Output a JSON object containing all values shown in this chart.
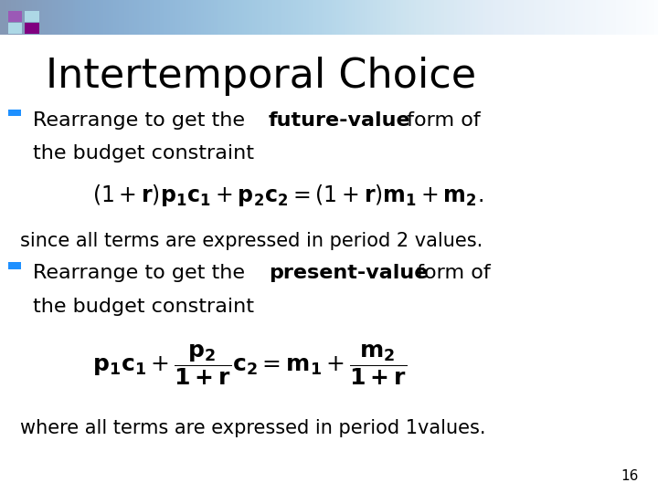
{
  "title": "Intertemporal Choice",
  "title_fontsize": 32,
  "title_color": "#000000",
  "bullet_color": "#1E90FF",
  "bullet1_bold": "future-value",
  "bullet2_bold": "present-value",
  "since_text": "since all terms are expressed in period 2 values.",
  "where_text": "where all terms are expressed in period 1values.",
  "page_number": "16",
  "bg_color": "#FFFFFF",
  "sq_colors": [
    "#9B59B6",
    "#ADD8E6",
    "#ADD8E6",
    "#800080"
  ],
  "text_fontsize": 16,
  "eq1_fontsize": 17,
  "eq2_fontsize": 18
}
